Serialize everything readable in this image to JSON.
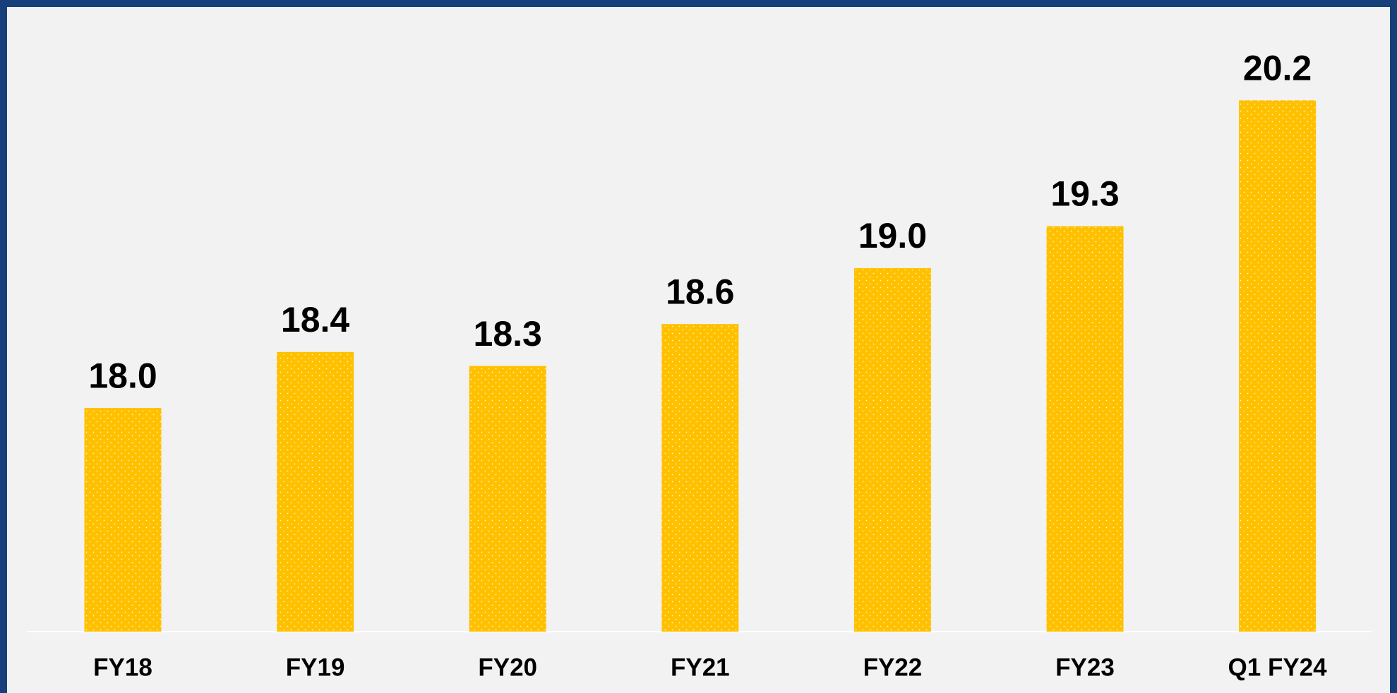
{
  "chart_data": {
    "type": "bar",
    "categories": [
      "FY18",
      "FY19",
      "FY20",
      "FY21",
      "FY22",
      "FY23",
      "Q1 FY24"
    ],
    "values": [
      18.0,
      18.4,
      18.3,
      18.6,
      19.0,
      19.3,
      20.2
    ],
    "value_labels": [
      "18.0",
      "18.4",
      "18.3",
      "18.6",
      "19.0",
      "19.3",
      "20.2"
    ],
    "color": "#ffc000",
    "ylim": [
      16.4,
      20.6
    ]
  }
}
